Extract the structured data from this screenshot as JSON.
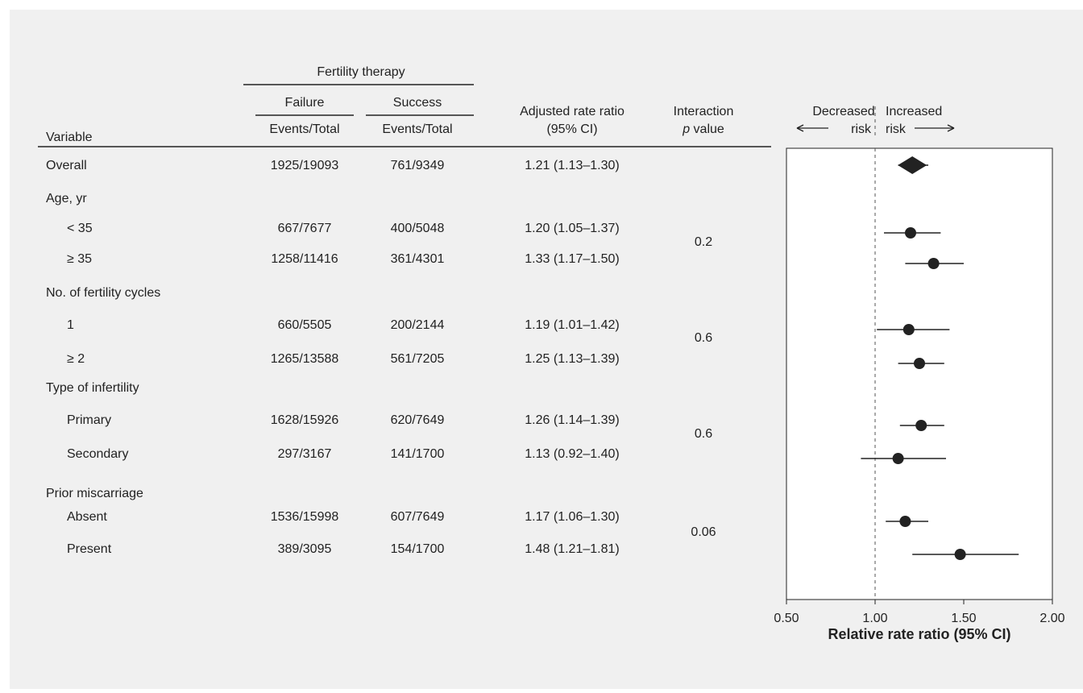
{
  "table": {
    "group_header": "Fertility therapy",
    "col_failure": "Failure",
    "col_success": "Success",
    "col_failure_sub": "Events/Total",
    "col_success_sub": "Events/Total",
    "col_variable": "Variable",
    "col_ratio_1": "Adjusted rate ratio",
    "col_ratio_2": "(95% CI)",
    "col_interaction_1": "Interaction",
    "col_interaction_2_italic": "p",
    "col_interaction_2_rest": " value",
    "rows": [
      {
        "label": "Overall",
        "indent": false,
        "failure": "1925/19093",
        "success": "761/9349",
        "ratio": "1.21 (1.13–1.30)"
      },
      {
        "label": "Age, yr",
        "indent": false,
        "failure": "",
        "success": "",
        "ratio": ""
      },
      {
        "label": "< 35",
        "indent": true,
        "failure": "667/7677",
        "success": "400/5048",
        "ratio": "1.20 (1.05–1.37)"
      },
      {
        "label": "≥ 35",
        "indent": true,
        "failure": "1258/11416",
        "success": "361/4301",
        "ratio": "1.33 (1.17–1.50)"
      },
      {
        "label": "No. of fertility cycles",
        "indent": false,
        "failure": "",
        "success": "",
        "ratio": ""
      },
      {
        "label": "1",
        "indent": true,
        "failure": "660/5505",
        "success": "200/2144",
        "ratio": "1.19 (1.01–1.42)"
      },
      {
        "label": "≥ 2",
        "indent": true,
        "failure": "1265/13588",
        "success": "561/7205",
        "ratio": "1.25 (1.13–1.39)"
      },
      {
        "label": "Type of infertility",
        "indent": false,
        "failure": "",
        "success": "",
        "ratio": ""
      },
      {
        "label": "Primary",
        "indent": true,
        "failure": "1628/15926",
        "success": "620/7649",
        "ratio": "1.26 (1.14–1.39)"
      },
      {
        "label": "Secondary",
        "indent": true,
        "failure": "297/3167",
        "success": "141/1700",
        "ratio": "1.13 (0.92–1.40)"
      },
      {
        "label": "Prior miscarriage",
        "indent": false,
        "failure": "",
        "success": "",
        "ratio": ""
      },
      {
        "label": "Absent",
        "indent": true,
        "failure": "1536/15998",
        "success": "607/7649",
        "ratio": "1.17 (1.06–1.30)"
      },
      {
        "label": "Present",
        "indent": true,
        "failure": "389/3095",
        "success": "154/1700",
        "ratio": "1.48 (1.21–1.81)"
      }
    ],
    "interaction_values": [
      "0.2",
      "0.6",
      "0.6",
      "0.06"
    ]
  },
  "chart_data": {
    "type": "scatter",
    "subtype": "forest-plot",
    "xlabel": "Relative rate ratio (95% CI)",
    "xlim": [
      0.5,
      2.0
    ],
    "xticks": [
      "0.50",
      "1.00",
      "1.50",
      "2.00"
    ],
    "reference_line": 1.0,
    "direction_labels": {
      "left_top": "Decreased",
      "left_bottom": "risk",
      "right_top": "Increased",
      "right_bottom": "risk"
    },
    "points": [
      {
        "label": "Overall",
        "estimate": 1.21,
        "lower": 1.13,
        "upper": 1.3,
        "marker": "diamond"
      },
      {
        "label": "< 35",
        "estimate": 1.2,
        "lower": 1.05,
        "upper": 1.37,
        "marker": "circle"
      },
      {
        "label": "≥ 35",
        "estimate": 1.33,
        "lower": 1.17,
        "upper": 1.5,
        "marker": "circle"
      },
      {
        "label": "1",
        "estimate": 1.19,
        "lower": 1.01,
        "upper": 1.42,
        "marker": "circle"
      },
      {
        "label": "≥ 2",
        "estimate": 1.25,
        "lower": 1.13,
        "upper": 1.39,
        "marker": "circle"
      },
      {
        "label": "Primary",
        "estimate": 1.26,
        "lower": 1.14,
        "upper": 1.39,
        "marker": "circle"
      },
      {
        "label": "Secondary",
        "estimate": 1.13,
        "lower": 0.92,
        "upper": 1.4,
        "marker": "circle"
      },
      {
        "label": "Absent",
        "estimate": 1.17,
        "lower": 1.06,
        "upper": 1.3,
        "marker": "circle"
      },
      {
        "label": "Present",
        "estimate": 1.48,
        "lower": 1.21,
        "upper": 1.81,
        "marker": "circle"
      }
    ],
    "colors": {
      "background": "#f0f0f0",
      "plot_area": "#ffffff",
      "marker": "#222222"
    }
  }
}
